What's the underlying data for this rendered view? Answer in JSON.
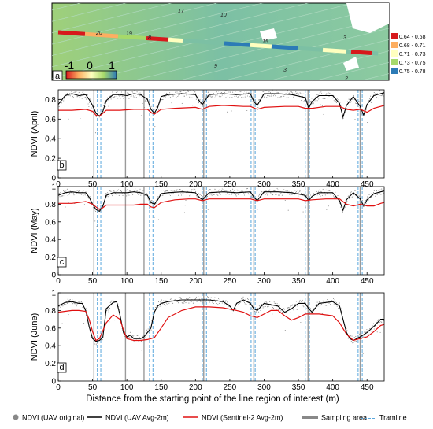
{
  "figure": {
    "xlabel": "Distance from the starting point of the line region of interest (m)"
  },
  "map_panel": {
    "letter": "a",
    "scale_ticks": [
      "-1",
      "0",
      "1"
    ],
    "point_labels": [
      "17",
      "10",
      "20",
      "19",
      "8",
      "15",
      "3",
      "9",
      "3",
      "2"
    ],
    "legend": [
      {
        "label": "0.64 - 0.68",
        "color": "#d7191c"
      },
      {
        "label": "0.68 - 0.71",
        "color": "#fdae61"
      },
      {
        "label": "0.71 - 0.73",
        "color": "#ffffbf"
      },
      {
        "label": "0.73 - 0.75",
        "color": "#a6d96a"
      },
      {
        "label": "0.75 - 0.78",
        "color": "#2c7bb6"
      }
    ]
  },
  "chart_data": [
    {
      "type": "line",
      "panel": "b",
      "ylabel": "NDVI (April)",
      "xlim": [
        0,
        475
      ],
      "ylim": [
        0,
        0.9
      ],
      "xticks": [
        0,
        50,
        100,
        150,
        200,
        250,
        300,
        350,
        400,
        450
      ],
      "yticks": [
        0,
        0.2,
        0.4,
        0.6,
        0.8
      ],
      "series": [
        {
          "name": "NDVI (UAV Avg-2m)",
          "color": "#000000",
          "x": [
            0,
            10,
            20,
            30,
            40,
            45,
            50,
            55,
            60,
            65,
            70,
            80,
            90,
            100,
            110,
            120,
            130,
            135,
            140,
            145,
            150,
            160,
            180,
            200,
            205,
            210,
            215,
            220,
            240,
            260,
            280,
            285,
            290,
            295,
            300,
            320,
            340,
            360,
            365,
            370,
            380,
            400,
            410,
            415,
            420,
            430,
            440,
            445,
            450,
            460,
            470,
            475
          ],
          "y": [
            0.75,
            0.84,
            0.86,
            0.84,
            0.85,
            0.8,
            0.74,
            0.66,
            0.63,
            0.68,
            0.79,
            0.85,
            0.85,
            0.84,
            0.86,
            0.85,
            0.8,
            0.7,
            0.66,
            0.72,
            0.83,
            0.85,
            0.86,
            0.85,
            0.79,
            0.75,
            0.8,
            0.85,
            0.86,
            0.85,
            0.86,
            0.78,
            0.74,
            0.8,
            0.86,
            0.86,
            0.85,
            0.82,
            0.71,
            0.78,
            0.84,
            0.84,
            0.76,
            0.62,
            0.74,
            0.83,
            0.73,
            0.64,
            0.75,
            0.84,
            0.86,
            0.87
          ]
        },
        {
          "name": "NDVI (Sentinel-2 Avg-2m)",
          "color": "#e01010",
          "x": [
            0,
            20,
            40,
            50,
            55,
            60,
            65,
            70,
            90,
            110,
            120,
            130,
            135,
            140,
            150,
            170,
            200,
            210,
            220,
            240,
            270,
            280,
            290,
            300,
            330,
            350,
            360,
            370,
            390,
            400,
            410,
            420,
            430,
            440,
            450,
            460,
            470,
            475
          ],
          "y": [
            0.69,
            0.69,
            0.7,
            0.68,
            0.64,
            0.63,
            0.66,
            0.69,
            0.69,
            0.7,
            0.7,
            0.7,
            0.67,
            0.65,
            0.7,
            0.71,
            0.72,
            0.7,
            0.73,
            0.74,
            0.73,
            0.73,
            0.7,
            0.72,
            0.73,
            0.73,
            0.71,
            0.71,
            0.73,
            0.73,
            0.73,
            0.7,
            0.69,
            0.7,
            0.67,
            0.71,
            0.73,
            0.74
          ]
        }
      ]
    },
    {
      "type": "line",
      "panel": "c",
      "ylabel": "NDVI (May)",
      "xlim": [
        0,
        475
      ],
      "ylim": [
        0,
        1.0
      ],
      "xticks": [
        0,
        50,
        100,
        150,
        200,
        250,
        300,
        350,
        400,
        450
      ],
      "yticks": [
        0,
        0.2,
        0.4,
        0.6,
        0.8,
        1
      ],
      "series": [
        {
          "name": "NDVI (UAV Avg-2m)",
          "color": "#000000",
          "x": [
            0,
            10,
            20,
            30,
            40,
            45,
            50,
            55,
            60,
            65,
            70,
            80,
            90,
            100,
            110,
            120,
            130,
            135,
            140,
            145,
            150,
            160,
            180,
            200,
            205,
            210,
            215,
            220,
            240,
            260,
            280,
            285,
            290,
            295,
            300,
            320,
            340,
            360,
            365,
            370,
            380,
            400,
            410,
            415,
            420,
            430,
            440,
            445,
            450,
            460,
            470,
            475
          ],
          "y": [
            0.9,
            0.93,
            0.94,
            0.93,
            0.93,
            0.88,
            0.8,
            0.74,
            0.72,
            0.78,
            0.9,
            0.93,
            0.93,
            0.93,
            0.94,
            0.93,
            0.9,
            0.82,
            0.8,
            0.85,
            0.92,
            0.93,
            0.94,
            0.93,
            0.88,
            0.85,
            0.89,
            0.93,
            0.94,
            0.93,
            0.94,
            0.88,
            0.84,
            0.89,
            0.94,
            0.94,
            0.93,
            0.9,
            0.84,
            0.89,
            0.93,
            0.93,
            0.84,
            0.73,
            0.85,
            0.93,
            0.86,
            0.78,
            0.85,
            0.92,
            0.94,
            0.95
          ]
        },
        {
          "name": "NDVI (Sentinel-2 Avg-2m)",
          "color": "#e01010",
          "x": [
            0,
            20,
            40,
            50,
            55,
            60,
            65,
            70,
            90,
            110,
            120,
            130,
            135,
            140,
            150,
            170,
            190,
            200,
            210,
            220,
            240,
            270,
            280,
            290,
            300,
            330,
            350,
            360,
            370,
            390,
            400,
            410,
            420,
            430,
            440,
            450,
            460,
            470,
            475
          ],
          "y": [
            0.81,
            0.81,
            0.83,
            0.8,
            0.77,
            0.74,
            0.76,
            0.79,
            0.79,
            0.79,
            0.8,
            0.8,
            0.77,
            0.76,
            0.82,
            0.85,
            0.86,
            0.86,
            0.84,
            0.86,
            0.86,
            0.86,
            0.86,
            0.84,
            0.86,
            0.86,
            0.86,
            0.84,
            0.85,
            0.86,
            0.86,
            0.86,
            0.8,
            0.78,
            0.8,
            0.78,
            0.78,
            0.81,
            0.82
          ]
        }
      ]
    },
    {
      "type": "line",
      "panel": "d",
      "ylabel": "NDVI (June)",
      "xlim": [
        0,
        475
      ],
      "ylim": [
        0,
        1.0
      ],
      "xticks": [
        0,
        50,
        100,
        150,
        200,
        250,
        300,
        350,
        400,
        450
      ],
      "yticks": [
        0,
        0.2,
        0.4,
        0.6,
        0.8,
        1
      ],
      "series": [
        {
          "name": "NDVI (UAV Avg-2m)",
          "color": "#000000",
          "x": [
            0,
            10,
            20,
            30,
            35,
            40,
            45,
            50,
            55,
            60,
            65,
            70,
            80,
            85,
            90,
            95,
            100,
            105,
            110,
            115,
            120,
            125,
            130,
            135,
            140,
            145,
            150,
            160,
            180,
            200,
            210,
            220,
            240,
            250,
            255,
            260,
            270,
            280,
            285,
            290,
            300,
            320,
            330,
            340,
            350,
            360,
            365,
            370,
            380,
            400,
            410,
            415,
            420,
            425,
            430,
            440,
            450,
            460,
            470,
            475
          ],
          "y": [
            0.85,
            0.89,
            0.9,
            0.88,
            0.88,
            0.8,
            0.62,
            0.48,
            0.45,
            0.46,
            0.5,
            0.82,
            0.89,
            0.9,
            0.75,
            0.55,
            0.5,
            0.52,
            0.48,
            0.48,
            0.48,
            0.5,
            0.55,
            0.6,
            0.78,
            0.85,
            0.88,
            0.9,
            0.92,
            0.92,
            0.92,
            0.92,
            0.9,
            0.85,
            0.8,
            0.88,
            0.92,
            0.88,
            0.82,
            0.8,
            0.88,
            0.85,
            0.78,
            0.82,
            0.88,
            0.88,
            0.82,
            0.78,
            0.88,
            0.9,
            0.85,
            0.7,
            0.55,
            0.48,
            0.46,
            0.5,
            0.55,
            0.62,
            0.7,
            0.7
          ]
        },
        {
          "name": "NDVI (Sentinel-2 Avg-2m)",
          "color": "#e01010",
          "x": [
            0,
            20,
            30,
            40,
            45,
            50,
            55,
            60,
            70,
            80,
            90,
            95,
            100,
            110,
            120,
            130,
            140,
            150,
            160,
            180,
            200,
            220,
            240,
            260,
            270,
            280,
            290,
            300,
            310,
            320,
            330,
            340,
            350,
            360,
            370,
            380,
            400,
            410,
            420,
            430,
            440,
            450,
            460,
            470,
            475
          ],
          "y": [
            0.78,
            0.8,
            0.8,
            0.79,
            0.7,
            0.56,
            0.46,
            0.48,
            0.66,
            0.75,
            0.7,
            0.58,
            0.48,
            0.46,
            0.46,
            0.47,
            0.49,
            0.6,
            0.72,
            0.8,
            0.84,
            0.84,
            0.83,
            0.8,
            0.78,
            0.74,
            0.72,
            0.76,
            0.8,
            0.8,
            0.74,
            0.69,
            0.72,
            0.76,
            0.76,
            0.76,
            0.74,
            0.66,
            0.53,
            0.46,
            0.48,
            0.5,
            0.56,
            0.63,
            0.64
          ]
        }
      ]
    }
  ],
  "sampling_areas": [
    52,
    98,
    125,
    212,
    285,
    364,
    440
  ],
  "tramlines": [
    57,
    62,
    133,
    138,
    210,
    216,
    281,
    287,
    360,
    366,
    437,
    443
  ],
  "legend": {
    "items": [
      {
        "label": "NDVI (UAV original)",
        "kind": "dot",
        "color": "#888888"
      },
      {
        "label": "NDVI (UAV Avg-2m)",
        "kind": "line",
        "color": "#000000"
      },
      {
        "label": "NDVI (Sentinel-2 Avg-2m)",
        "kind": "line",
        "color": "#e01010"
      },
      {
        "label": "Sampling area",
        "kind": "thick",
        "color": "#888888"
      },
      {
        "label": "Tramline",
        "kind": "dashed",
        "color": "#5aa7dd"
      }
    ]
  }
}
